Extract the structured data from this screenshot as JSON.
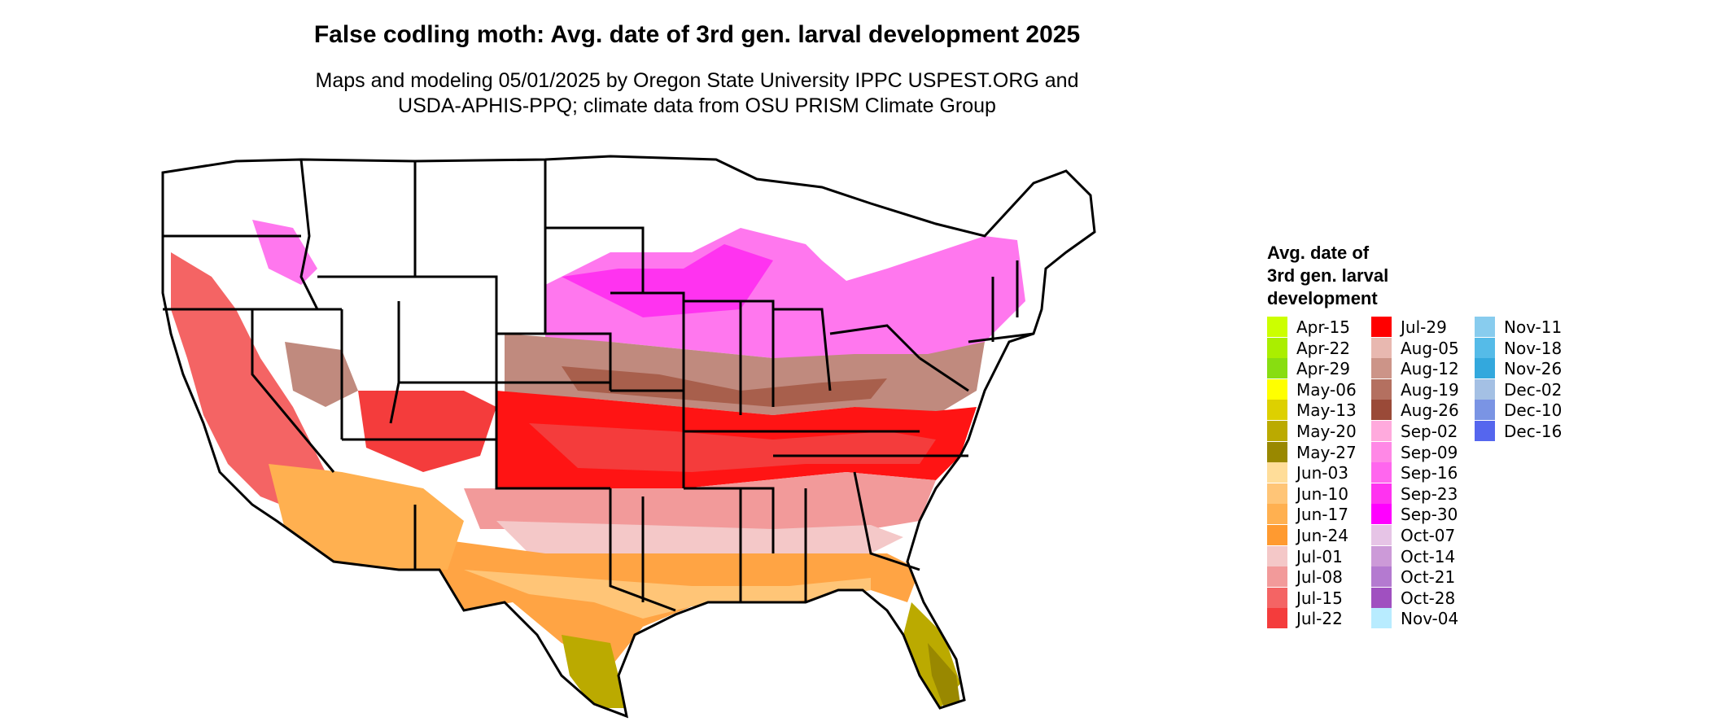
{
  "title": "False codling moth: Avg. date of 3rd gen. larval development 2025",
  "subtitle_line1": "Maps and modeling 05/01/2025 by Oregon State University IPPC USPEST.ORG and",
  "subtitle_line2": "USDA-APHIS-PPQ; climate data from OSU PRISM Climate Group",
  "legend": {
    "title_lines": [
      "Avg. date of",
      "3rd gen. larval",
      "development"
    ],
    "columns": [
      [
        {
          "label": "Apr-15",
          "color": "#ccff00"
        },
        {
          "label": "Apr-22",
          "color": "#aaee00"
        },
        {
          "label": "Apr-29",
          "color": "#88dd11"
        },
        {
          "label": "May-06",
          "color": "#ffff00"
        },
        {
          "label": "May-13",
          "color": "#ddd000"
        },
        {
          "label": "May-20",
          "color": "#bbaa00"
        },
        {
          "label": "May-27",
          "color": "#998800"
        },
        {
          "label": "Jun-03",
          "color": "#ffdd99"
        },
        {
          "label": "Jun-10",
          "color": "#ffc577"
        },
        {
          "label": "Jun-17",
          "color": "#ffb050"
        },
        {
          "label": "Jun-24",
          "color": "#ff9a30"
        },
        {
          "label": "Jul-01",
          "color": "#f4c8c8"
        },
        {
          "label": "Jul-08",
          "color": "#f29a9a"
        },
        {
          "label": "Jul-15",
          "color": "#f46464"
        },
        {
          "label": "Jul-22",
          "color": "#f43c3c"
        }
      ],
      [
        {
          "label": "Jul-29",
          "color": "#ff0000"
        },
        {
          "label": "Aug-05",
          "color": "#e8b8b0"
        },
        {
          "label": "Aug-12",
          "color": "#cc9488"
        },
        {
          "label": "Aug-19",
          "color": "#b47060"
        },
        {
          "label": "Aug-26",
          "color": "#9a4a38"
        },
        {
          "label": "Sep-02",
          "color": "#ffaadd"
        },
        {
          "label": "Sep-09",
          "color": "#ff88e6"
        },
        {
          "label": "Sep-16",
          "color": "#ff66ee"
        },
        {
          "label": "Sep-23",
          "color": "#ff33f0"
        },
        {
          "label": "Sep-30",
          "color": "#ff00ff"
        },
        {
          "label": "Oct-07",
          "color": "#e6c4e6"
        },
        {
          "label": "Oct-14",
          "color": "#cc9ad8"
        },
        {
          "label": "Oct-21",
          "color": "#b47ad0"
        },
        {
          "label": "Oct-28",
          "color": "#a050c0"
        },
        {
          "label": "Nov-04",
          "color": "#b8ecff"
        }
      ],
      [
        {
          "label": "Nov-11",
          "color": "#88ccee"
        },
        {
          "label": "Nov-18",
          "color": "#55bbe8"
        },
        {
          "label": "Nov-26",
          "color": "#33a8dd"
        },
        {
          "label": "Dec-02",
          "color": "#a4c0e4"
        },
        {
          "label": "Dec-10",
          "color": "#7a94e4"
        },
        {
          "label": "Dec-16",
          "color": "#5566ee"
        }
      ]
    ]
  }
}
